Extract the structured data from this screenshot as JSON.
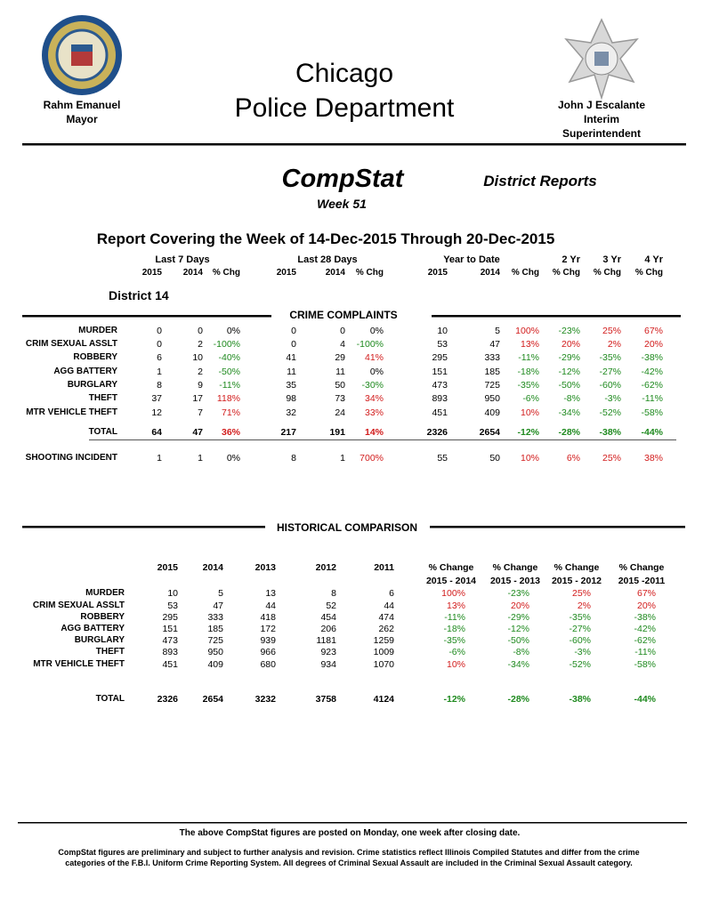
{
  "header": {
    "left_name": "Rahm Emanuel",
    "left_title": "Mayor",
    "title_line1": "Chicago",
    "title_line2": "Police Department",
    "right_name": "John J Escalante",
    "right_title1": "Interim",
    "right_title2": "Superintendent"
  },
  "compstat": {
    "title": "CompStat",
    "week": "Week 51",
    "district_reports": "District Reports"
  },
  "report_title": "Report Covering the Week of 14-Dec-2015 Through 20-Dec-2015",
  "crime_table": {
    "groups": [
      "Last 7 Days",
      "Last 28 Days",
      "Year to Date",
      "2 Yr",
      "3 Yr",
      "4 Yr"
    ],
    "subheaders": [
      "2015",
      "2014",
      "% Chg",
      "2015",
      "2014",
      "% Chg",
      "2015",
      "2014",
      "% Chg",
      "% Chg",
      "% Chg",
      "% Chg"
    ],
    "district": "District 14",
    "section": "CRIME COMPLAINTS",
    "rows": [
      {
        "label": "MURDER",
        "cells": [
          "0",
          "0",
          "0%",
          "0",
          "0",
          "0%",
          "10",
          "5",
          "100%",
          "-23%",
          "25%",
          "67%"
        ]
      },
      {
        "label": "CRIM SEXUAL ASSLT",
        "cells": [
          "0",
          "2",
          "-100%",
          "0",
          "4",
          "-100%",
          "53",
          "47",
          "13%",
          "20%",
          "2%",
          "20%"
        ]
      },
      {
        "label": "ROBBERY",
        "cells": [
          "6",
          "10",
          "-40%",
          "41",
          "29",
          "41%",
          "295",
          "333",
          "-11%",
          "-29%",
          "-35%",
          "-38%"
        ]
      },
      {
        "label": "AGG BATTERY",
        "cells": [
          "1",
          "2",
          "-50%",
          "11",
          "11",
          "0%",
          "151",
          "185",
          "-18%",
          "-12%",
          "-27%",
          "-42%"
        ]
      },
      {
        "label": "BURGLARY",
        "cells": [
          "8",
          "9",
          "-11%",
          "35",
          "50",
          "-30%",
          "473",
          "725",
          "-35%",
          "-50%",
          "-60%",
          "-62%"
        ]
      },
      {
        "label": "THEFT",
        "cells": [
          "37",
          "17",
          "118%",
          "98",
          "73",
          "34%",
          "893",
          "950",
          "-6%",
          "-8%",
          "-3%",
          "-11%"
        ]
      },
      {
        "label": "MTR VEHICLE THEFT",
        "cells": [
          "12",
          "7",
          "71%",
          "32",
          "24",
          "33%",
          "451",
          "409",
          "10%",
          "-34%",
          "-52%",
          "-58%"
        ]
      }
    ],
    "total": {
      "label": "TOTAL",
      "cells": [
        "64",
        "47",
        "36%",
        "217",
        "191",
        "14%",
        "2326",
        "2654",
        "-12%",
        "-28%",
        "-38%",
        "-44%"
      ]
    },
    "shooting": {
      "label": "SHOOTING INCIDENT",
      "cells": [
        "1",
        "1",
        "0%",
        "8",
        "1",
        "700%",
        "55",
        "50",
        "10%",
        "6%",
        "25%",
        "38%"
      ]
    }
  },
  "historical": {
    "title": "HISTORICAL COMPARISON",
    "years": [
      "2015",
      "2014",
      "2013",
      "2012",
      "2011"
    ],
    "change_label": [
      "% Change",
      "% Change",
      "% Change",
      "% Change"
    ],
    "change_ranges": [
      "2015 -  2014",
      "2015 - 2013",
      "2015 - 2012",
      "2015 -2011"
    ],
    "rows": [
      {
        "label": "MURDER",
        "cells": [
          "10",
          "5",
          "13",
          "8",
          "6",
          "100%",
          "-23%",
          "25%",
          "67%"
        ]
      },
      {
        "label": "CRIM SEXUAL ASSLT",
        "cells": [
          "53",
          "47",
          "44",
          "52",
          "44",
          "13%",
          "20%",
          "2%",
          "20%"
        ]
      },
      {
        "label": "ROBBERY",
        "cells": [
          "295",
          "333",
          "418",
          "454",
          "474",
          "-11%",
          "-29%",
          "-35%",
          "-38%"
        ]
      },
      {
        "label": "AGG BATTERY",
        "cells": [
          "151",
          "185",
          "172",
          "206",
          "262",
          "-18%",
          "-12%",
          "-27%",
          "-42%"
        ]
      },
      {
        "label": "BURGLARY",
        "cells": [
          "473",
          "725",
          "939",
          "1181",
          "1259",
          "-35%",
          "-50%",
          "-60%",
          "-62%"
        ]
      },
      {
        "label": "THEFT",
        "cells": [
          "893",
          "950",
          "966",
          "923",
          "1009",
          "-6%",
          "-8%",
          "-3%",
          "-11%"
        ]
      },
      {
        "label": "MTR VEHICLE THEFT",
        "cells": [
          "451",
          "409",
          "680",
          "934",
          "1070",
          "10%",
          "-34%",
          "-52%",
          "-58%"
        ]
      }
    ],
    "total": {
      "label": "TOTAL",
      "cells": [
        "2326",
        "2654",
        "3232",
        "3758",
        "4124",
        "-12%",
        "-28%",
        "-38%",
        "-44%"
      ]
    }
  },
  "footer": {
    "note1": "The above CompStat figures are posted on Monday, one week after closing date.",
    "note2_line1": "CompStat figures are preliminary and subject to further analysis and revision.  Crime statistics reflect Illinois Compiled Statutes and differ from the crime",
    "note2_line2": "categories of the F.B.I. Uniform Crime Reporting System.  All degrees of Criminal Sexual Assault are included in the Criminal Sexual Assault category."
  }
}
